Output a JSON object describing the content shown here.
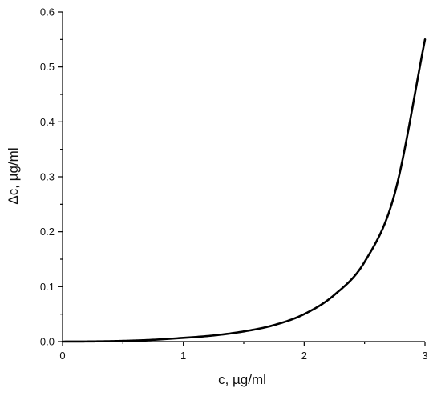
{
  "chart_data": {
    "type": "line",
    "title": "",
    "xlabel": "c, µg/ml",
    "ylabel": "Δc, µg/ml",
    "xlim": [
      0,
      3
    ],
    "ylim": [
      0,
      0.6
    ],
    "x_ticks": [
      "0",
      "1",
      "2",
      "3"
    ],
    "y_ticks": [
      "0.0",
      "0.1",
      "0.2",
      "0.3",
      "0.4",
      "0.5",
      "0.6"
    ],
    "grid": false,
    "legend": "none",
    "series": [
      {
        "color": "#000000",
        "x": [
          0,
          0.25,
          0.5,
          0.75,
          1.0,
          1.25,
          1.5,
          1.75,
          2.0,
          2.25,
          2.5,
          2.75,
          3.0
        ],
        "y": [
          0.0,
          0.0003,
          0.0013,
          0.0033,
          0.0068,
          0.0112,
          0.0185,
          0.03,
          0.05,
          0.085,
          0.145,
          0.27,
          0.55
        ]
      }
    ]
  }
}
